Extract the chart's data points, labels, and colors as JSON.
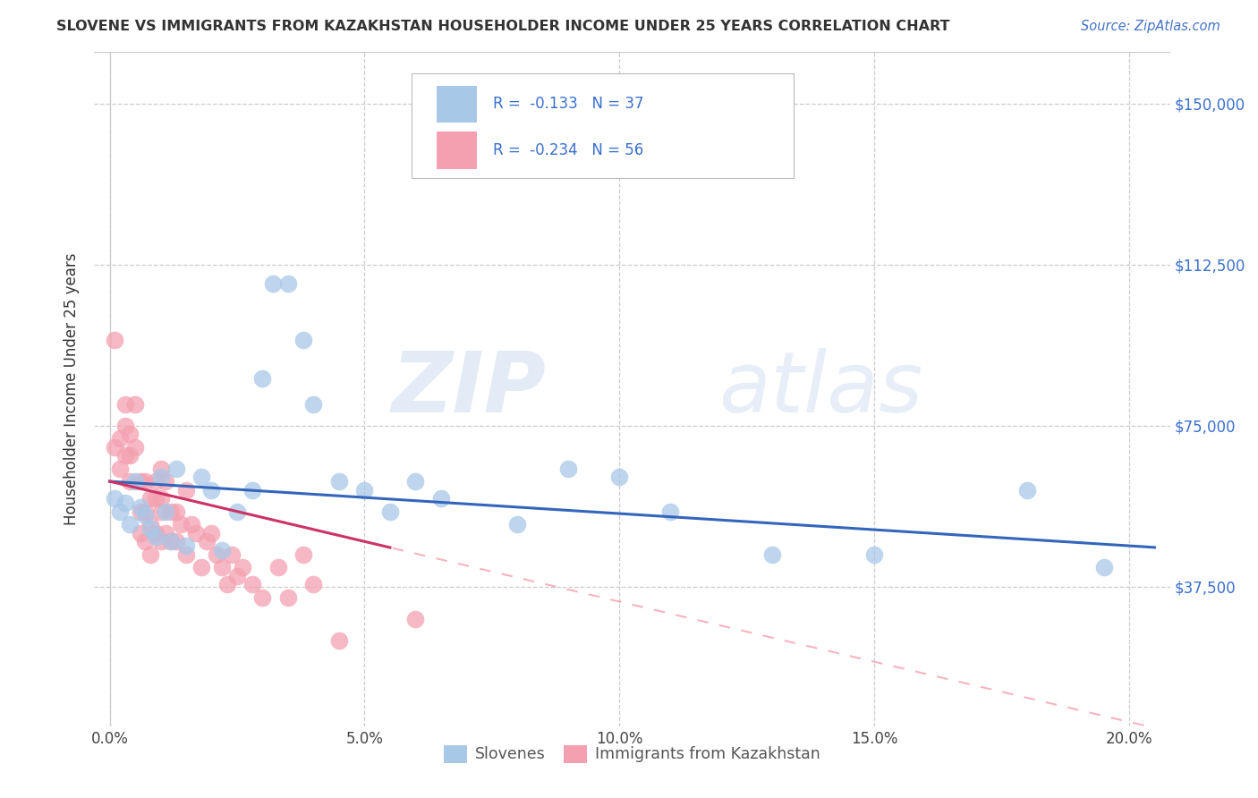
{
  "title": "SLOVENE VS IMMIGRANTS FROM KAZAKHSTAN HOUSEHOLDER INCOME UNDER 25 YEARS CORRELATION CHART",
  "source": "Source: ZipAtlas.com",
  "xlabel_ticks": [
    "0.0%",
    "5.0%",
    "10.0%",
    "15.0%",
    "20.0%"
  ],
  "xlabel_tick_vals": [
    0.0,
    0.05,
    0.1,
    0.15,
    0.2
  ],
  "ylabel": "Householder Income Under 25 years",
  "ylabel_ticks": [
    "$150,000",
    "$112,500",
    "$75,000",
    "$37,500"
  ],
  "ylabel_tick_vals": [
    150000,
    112500,
    75000,
    37500
  ],
  "right_ylabel_ticks": [
    "$150,000",
    "$112,500",
    "$75,000",
    "$37,500"
  ],
  "xlim": [
    -0.003,
    0.208
  ],
  "ylim": [
    5000,
    162000
  ],
  "plot_ylim": [
    5000,
    162000
  ],
  "slovene_R": -0.133,
  "slovene_N": 37,
  "kazakh_R": -0.234,
  "kazakh_N": 56,
  "slovene_color": "#a8c8e8",
  "kazakh_color": "#f4a0b0",
  "slovene_line_color": "#3366bb",
  "kazakh_line_solid_color": "#cc3366",
  "kazakh_line_dash_color": "#f4a0b0",
  "watermark_zip": "ZIP",
  "watermark_atlas": "atlas",
  "slovene_x": [
    0.001,
    0.002,
    0.003,
    0.004,
    0.005,
    0.006,
    0.007,
    0.008,
    0.009,
    0.01,
    0.011,
    0.012,
    0.013,
    0.015,
    0.018,
    0.02,
    0.022,
    0.025,
    0.028,
    0.03,
    0.032,
    0.035,
    0.038,
    0.04,
    0.045,
    0.05,
    0.055,
    0.06,
    0.065,
    0.08,
    0.09,
    0.1,
    0.11,
    0.13,
    0.15,
    0.18,
    0.195
  ],
  "slovene_y": [
    58000,
    55000,
    57000,
    52000,
    62000,
    56000,
    54000,
    51000,
    49000,
    63000,
    55000,
    48000,
    65000,
    47000,
    63000,
    60000,
    46000,
    55000,
    60000,
    86000,
    108000,
    108000,
    95000,
    80000,
    62000,
    60000,
    55000,
    62000,
    58000,
    52000,
    65000,
    63000,
    55000,
    45000,
    45000,
    60000,
    42000
  ],
  "kazakh_x": [
    0.001,
    0.001,
    0.002,
    0.002,
    0.003,
    0.003,
    0.003,
    0.004,
    0.004,
    0.004,
    0.005,
    0.005,
    0.006,
    0.006,
    0.006,
    0.007,
    0.007,
    0.007,
    0.008,
    0.008,
    0.008,
    0.009,
    0.009,
    0.009,
    0.01,
    0.01,
    0.01,
    0.01,
    0.011,
    0.011,
    0.012,
    0.012,
    0.013,
    0.013,
    0.014,
    0.015,
    0.015,
    0.016,
    0.017,
    0.018,
    0.019,
    0.02,
    0.021,
    0.022,
    0.023,
    0.024,
    0.025,
    0.026,
    0.028,
    0.03,
    0.033,
    0.035,
    0.038,
    0.04,
    0.045,
    0.06
  ],
  "kazakh_y": [
    95000,
    70000,
    72000,
    65000,
    80000,
    75000,
    68000,
    68000,
    62000,
    73000,
    80000,
    70000,
    62000,
    55000,
    50000,
    62000,
    55000,
    48000,
    58000,
    52000,
    45000,
    62000,
    58000,
    50000,
    65000,
    58000,
    55000,
    48000,
    62000,
    50000,
    55000,
    48000,
    55000,
    48000,
    52000,
    60000,
    45000,
    52000,
    50000,
    42000,
    48000,
    50000,
    45000,
    42000,
    38000,
    45000,
    40000,
    42000,
    38000,
    35000,
    42000,
    35000,
    45000,
    38000,
    25000,
    30000
  ]
}
